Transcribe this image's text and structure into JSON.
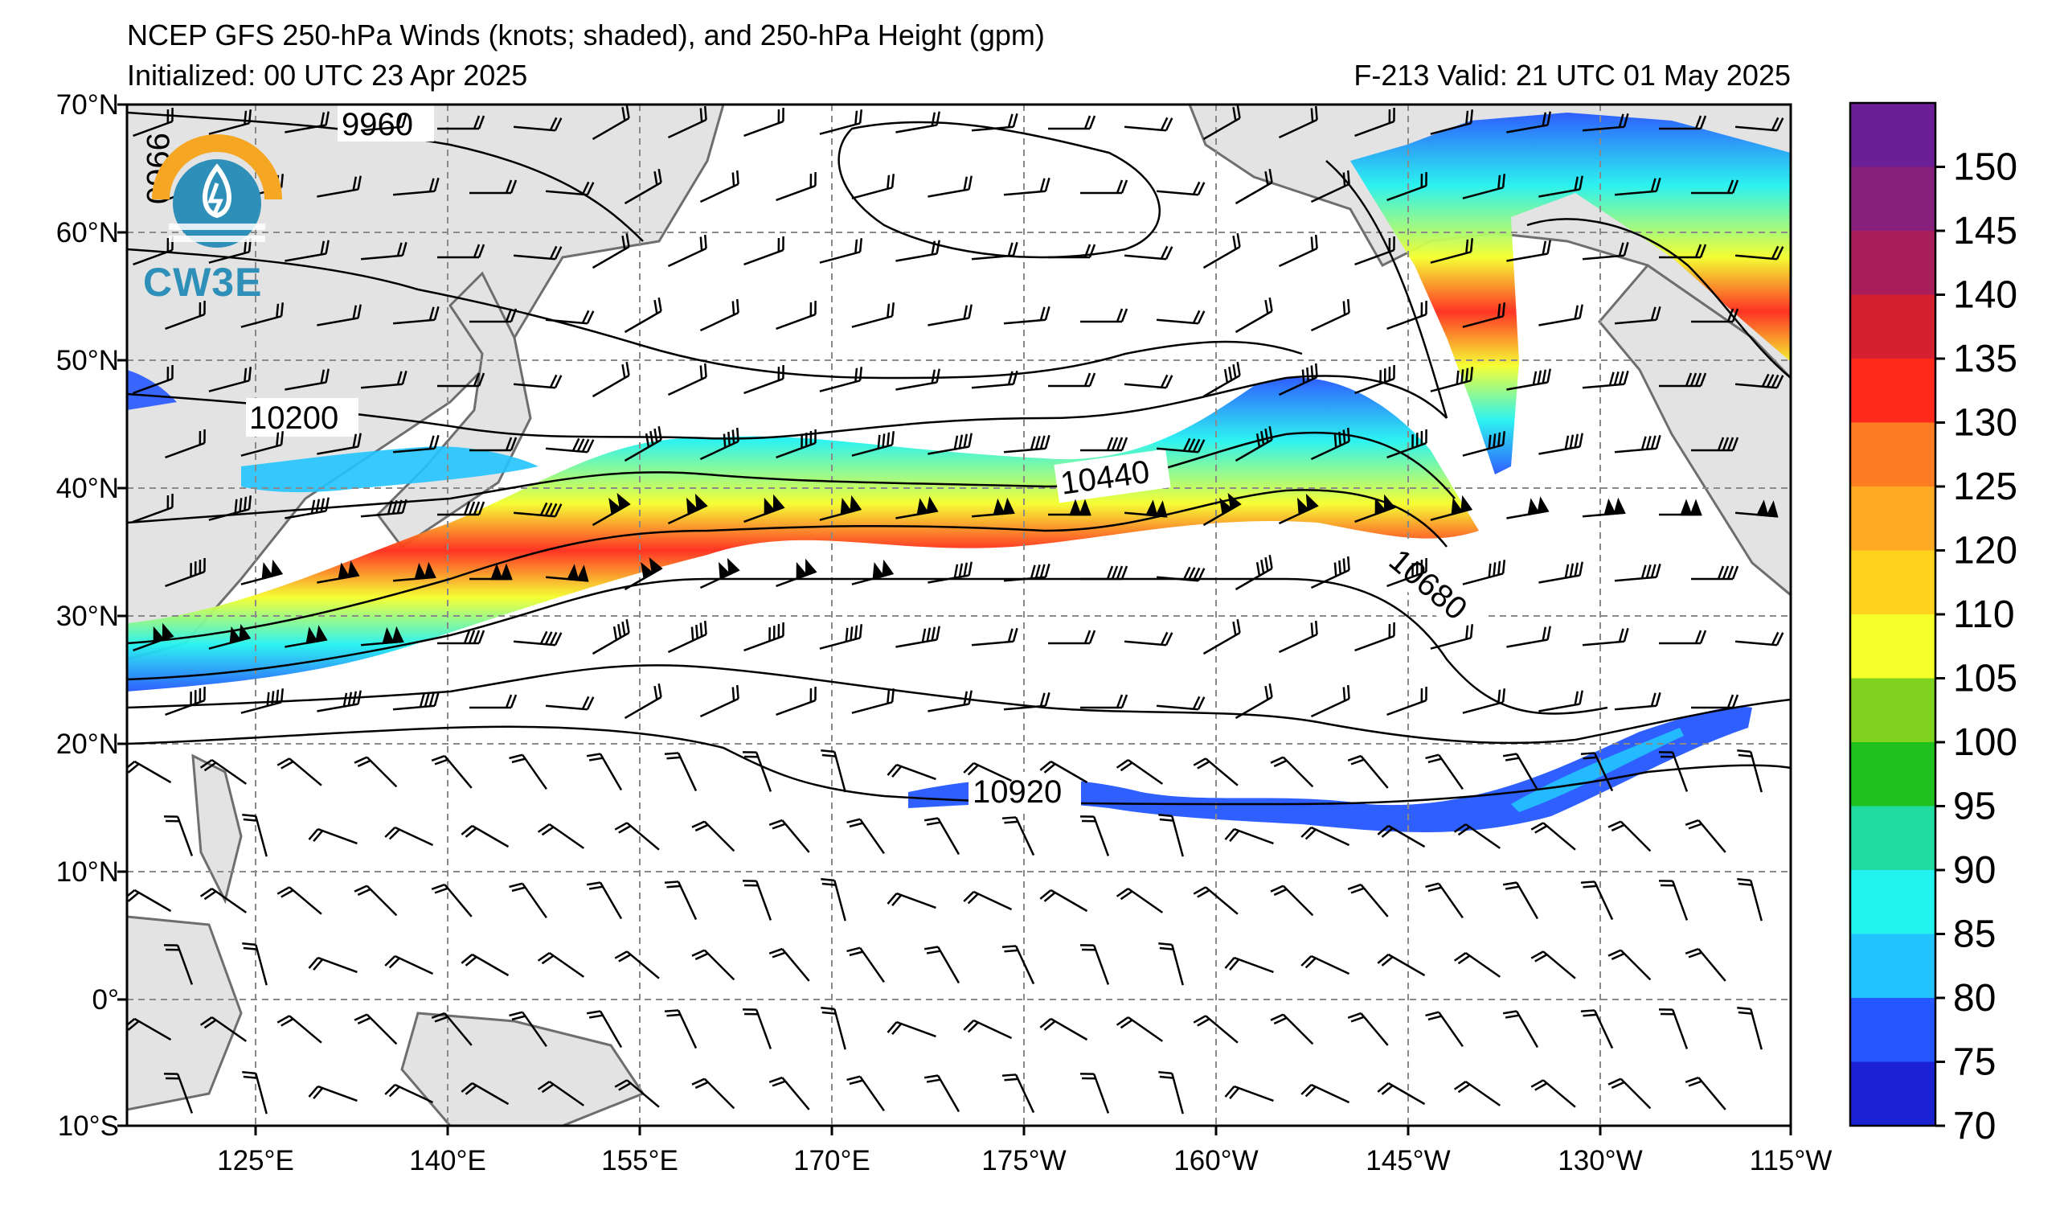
{
  "header": {
    "title": "NCEP GFS 250-hPa Winds (knots; shaded), and 250-hPa Height (gpm)",
    "initialized": "Initialized: 00 UTC 23 Apr 2025",
    "valid": "F-213  Valid: 21 UTC 01 May 2025"
  },
  "logo": {
    "text": "CW3E"
  },
  "map": {
    "lat_labels": [
      "70°N",
      "60°N",
      "50°N",
      "40°N",
      "30°N",
      "20°N",
      "10°N",
      "0°",
      "10°S"
    ],
    "lon_labels": [
      "125°E",
      "140°E",
      "155°E",
      "170°E",
      "175°W",
      "160°W",
      "145°W",
      "130°W",
      "115°W"
    ],
    "lat_range": [
      -10,
      70
    ],
    "lon_range": [
      "110°E",
      "115°W"
    ],
    "grid": true,
    "contour_labels": [
      "9960",
      "10200",
      "10440",
      "10680",
      "10920",
      "9960"
    ],
    "colors": {
      "land": "#e3e3e3",
      "coast": "#6e6e6e",
      "contour": "#000000",
      "grid": "#8a8a8a"
    }
  },
  "colorbar": {
    "levels": [
      "150",
      "145",
      "140",
      "135",
      "130",
      "125",
      "120",
      "110",
      "105",
      "100",
      "95",
      "90",
      "85",
      "80",
      "75",
      "70"
    ],
    "colors": [
      "#6a1f96",
      "#87207a",
      "#a81d5a",
      "#d42030",
      "#ff2a1a",
      "#ff7d22",
      "#ffaa22",
      "#ffd21e",
      "#f5ff2a",
      "#7fd21e",
      "#1ec21e",
      "#20dca0",
      "#22f2f0",
      "#22c4ff",
      "#2457ff",
      "#1a22d4"
    ]
  }
}
